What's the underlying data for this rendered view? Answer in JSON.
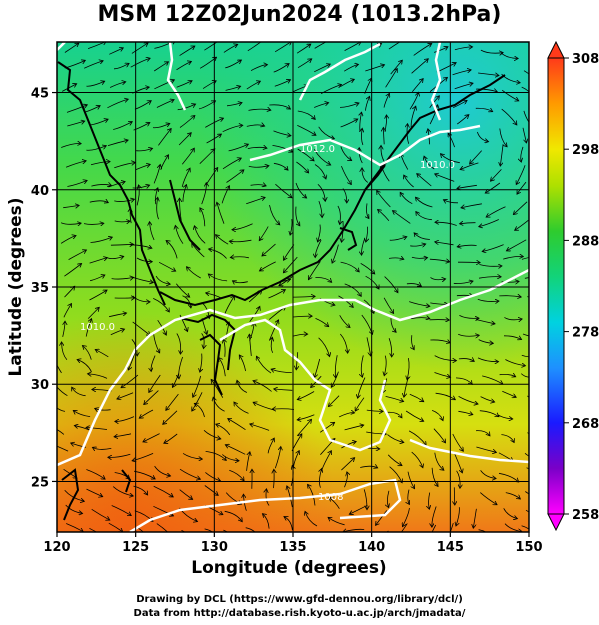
{
  "title": "MSM 12Z02Jun2024 (1013.2hPa)",
  "xlabel": "Longitude (degrees)",
  "ylabel": "Latitude  (degrees)",
  "footer": {
    "line1": "Drawing by DCL (https://www.gfd-dennou.org/library/dcl/)",
    "line2": "Data from http://database.rish.kyoto-u.ac.jp/arch/jmadata/"
  },
  "map": {
    "lon_range": [
      120,
      150
    ],
    "lat_range": [
      22.4,
      47.6
    ],
    "lon_ticks": [
      "120",
      "125",
      "130",
      "135",
      "140",
      "145",
      "150"
    ],
    "lat_ticks": [
      "25",
      "30",
      "35",
      "40",
      "45"
    ],
    "colorbar": {
      "ticks": [
        "258",
        "268",
        "278",
        "288",
        "298",
        "308"
      ],
      "min": 258,
      "max": 308
    },
    "contour_labels": [
      "1012.0",
      "1010.0",
      "1008",
      "1010.0"
    ]
  }
}
